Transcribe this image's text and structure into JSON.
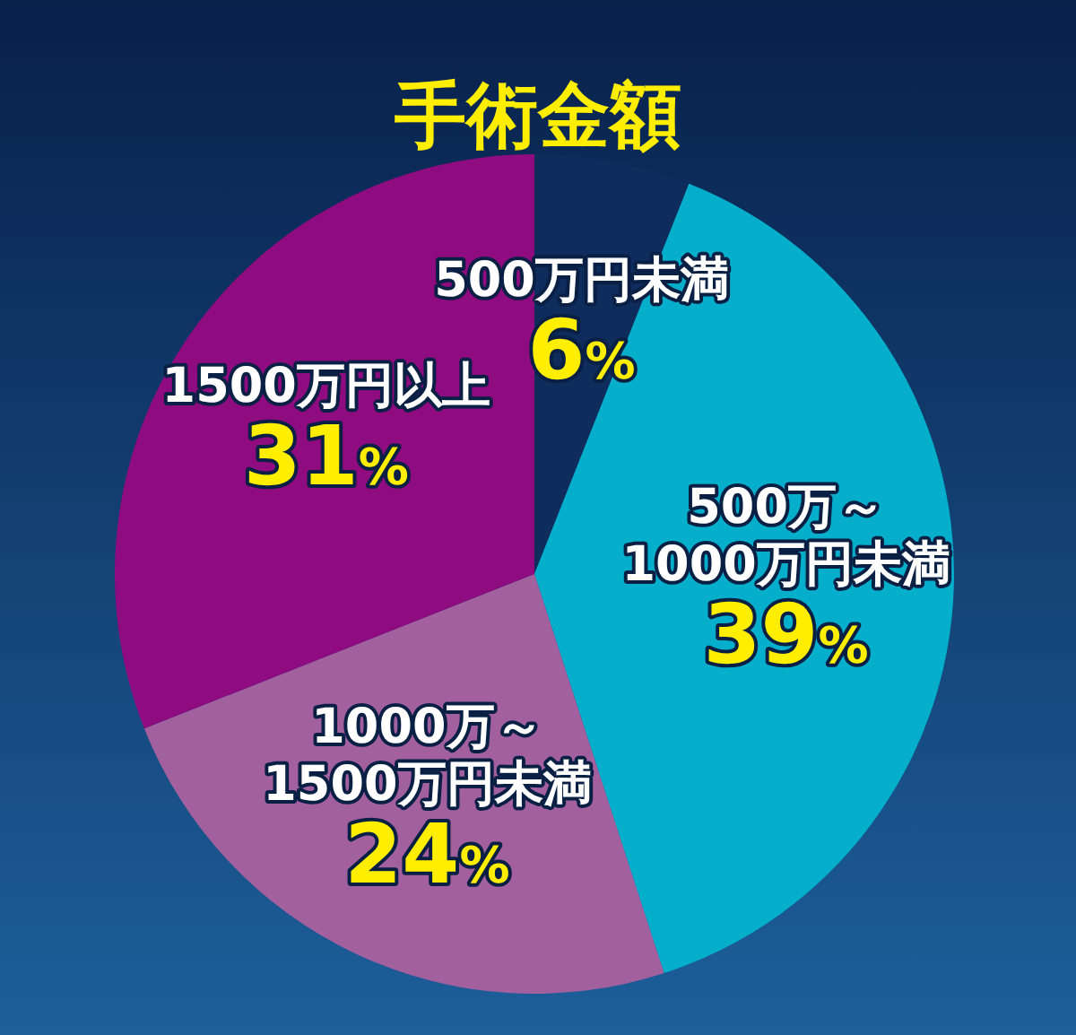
{
  "chart_data": {
    "type": "pie",
    "title": "手術金額",
    "categories": [
      "500万円未満",
      "500万～\n1000万円未満",
      "1000万～\n1500万円未満",
      "1500万円以上"
    ],
    "values": [
      6,
      39,
      24,
      31
    ],
    "colors": [
      "#0e2c5c",
      "#05aecb",
      "#a3609f",
      "#8f0b80"
    ],
    "value_labels": [
      "6%",
      "39%",
      "24%",
      "31%"
    ]
  }
}
